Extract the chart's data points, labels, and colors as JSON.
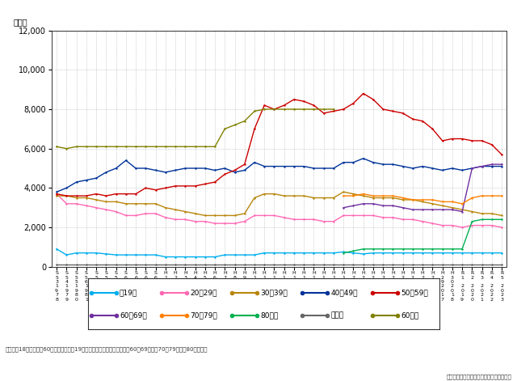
{
  "ylim": [
    0,
    12000
  ],
  "yticks": [
    0,
    2000,
    4000,
    6000,
    8000,
    10000,
    12000
  ],
  "series": {
    "~19歳": {
      "color": "#00aeef",
      "values": [
        900,
        600,
        700,
        700,
        700,
        650,
        600,
        600,
        600,
        600,
        600,
        500,
        500,
        500,
        500,
        500,
        500,
        600,
        600,
        600,
        600,
        700,
        700,
        700,
        700,
        700,
        700,
        700,
        700,
        750,
        700,
        650,
        700,
        700,
        700,
        700,
        700,
        700,
        700,
        700,
        700,
        700,
        700,
        700,
        700,
        700
      ]
    },
    "20~29歳": {
      "color": "#ff69b4",
      "values": [
        3700,
        3200,
        3200,
        3100,
        3000,
        2900,
        2800,
        2600,
        2600,
        2700,
        2700,
        2500,
        2400,
        2400,
        2300,
        2300,
        2200,
        2200,
        2200,
        2300,
        2600,
        2600,
        2600,
        2500,
        2400,
        2400,
        2400,
        2300,
        2300,
        2600,
        2600,
        2600,
        2600,
        2500,
        2500,
        2400,
        2400,
        2300,
        2200,
        2100,
        2100,
        2000,
        2100,
        2100,
        2100,
        2000
      ]
    },
    "30~39歳": {
      "color": "#b8860b",
      "values": [
        3600,
        3600,
        3500,
        3500,
        3400,
        3300,
        3300,
        3200,
        3200,
        3200,
        3200,
        3000,
        2900,
        2800,
        2700,
        2600,
        2600,
        2600,
        2600,
        2700,
        3500,
        3700,
        3700,
        3600,
        3600,
        3600,
        3500,
        3500,
        3500,
        3800,
        3700,
        3600,
        3500,
        3500,
        3500,
        3400,
        3400,
        3300,
        3200,
        3100,
        3000,
        2900,
        2800,
        2700,
        2700,
        2600
      ]
    },
    "40~49歳": {
      "color": "#003399",
      "values": [
        3800,
        4000,
        4300,
        4400,
        4500,
        4800,
        5000,
        5400,
        5000,
        5000,
        4900,
        4800,
        4900,
        5000,
        5000,
        5000,
        4900,
        5000,
        4800,
        4900,
        5300,
        5100,
        5100,
        5100,
        5100,
        5100,
        5000,
        5000,
        5000,
        5300,
        5300,
        5500,
        5300,
        5200,
        5200,
        5100,
        5000,
        5100,
        5000,
        4900,
        5000,
        4900,
        5000,
        5100,
        5100,
        5100
      ]
    },
    "50~59歳": {
      "color": "#cc0000",
      "values": [
        3700,
        3600,
        3600,
        3600,
        3700,
        3600,
        3700,
        3700,
        3700,
        4000,
        3900,
        4000,
        4100,
        4100,
        4100,
        4200,
        4300,
        4700,
        4900,
        5200,
        7000,
        8200,
        8000,
        8200,
        8500,
        8400,
        8200,
        7800,
        7900,
        8000,
        8300,
        8800,
        8500,
        8000,
        7900,
        7800,
        7500,
        7400,
        7000,
        6400,
        6500,
        6500,
        6400,
        6400,
        6200,
        5700
      ]
    },
    "60~69歳": {
      "color": "#7030a0",
      "values": [
        null,
        null,
        null,
        null,
        null,
        null,
        null,
        null,
        null,
        null,
        null,
        null,
        null,
        null,
        null,
        null,
        null,
        null,
        null,
        null,
        null,
        null,
        null,
        null,
        null,
        null,
        null,
        null,
        null,
        3000,
        3100,
        3200,
        3200,
        3100,
        3100,
        3000,
        2900,
        2900,
        2900,
        2900,
        2900,
        2800,
        5000,
        5100,
        5200,
        5200
      ]
    },
    "70~79歳": {
      "color": "#ff8000",
      "values": [
        null,
        null,
        null,
        null,
        null,
        null,
        null,
        null,
        null,
        null,
        null,
        null,
        null,
        null,
        null,
        null,
        null,
        null,
        null,
        null,
        null,
        null,
        null,
        null,
        null,
        null,
        null,
        null,
        null,
        3600,
        3600,
        3700,
        3600,
        3600,
        3600,
        3500,
        3400,
        3400,
        3400,
        3300,
        3300,
        3200,
        3500,
        3600,
        3600,
        3600
      ]
    },
    "80歳~": {
      "color": "#00b050",
      "values": [
        null,
        null,
        null,
        null,
        null,
        null,
        null,
        null,
        null,
        null,
        null,
        null,
        null,
        null,
        null,
        null,
        null,
        null,
        null,
        null,
        null,
        null,
        null,
        null,
        null,
        null,
        null,
        null,
        null,
        700,
        800,
        900,
        900,
        900,
        900,
        900,
        900,
        900,
        900,
        900,
        900,
        900,
        2300,
        2400,
        2400,
        2400
      ]
    },
    "不　計": {
      "color": "#666666",
      "values": [
        100,
        100,
        100,
        100,
        100,
        100,
        100,
        100,
        100,
        100,
        100,
        100,
        100,
        100,
        100,
        100,
        100,
        100,
        100,
        100,
        100,
        100,
        100,
        100,
        100,
        100,
        100,
        100,
        100,
        100,
        100,
        100,
        100,
        100,
        100,
        100,
        100,
        100,
        100,
        100,
        100,
        100,
        100,
        100,
        100,
        100
      ]
    },
    "60歳~": {
      "color": "#808000",
      "values": [
        6100,
        6000,
        6100,
        6100,
        6100,
        6100,
        6100,
        6100,
        6100,
        6100,
        6100,
        6100,
        6100,
        6100,
        6100,
        6100,
        6100,
        7000,
        7200,
        7400,
        7900,
        8000,
        8000,
        8000,
        8000,
        8000,
        8000,
        8000,
        8000,
        null,
        null,
        null,
        null,
        null,
        null,
        null,
        null,
        null,
        null,
        null,
        null,
        null,
        null,
        null,
        null,
        null
      ]
    }
  },
  "legend_row1": [
    {
      "label": "～19歳",
      "color": "#00aeef"
    },
    {
      "label": "20～29歳",
      "color": "#ff69b4"
    },
    {
      "label": "30～39歳",
      "color": "#b8860b"
    },
    {
      "label": "40～49歳",
      "color": "#003399"
    },
    {
      "label": "50～59歳",
      "color": "#cc0000"
    }
  ],
  "legend_row2": [
    {
      "label": "60～69歳",
      "color": "#7030a0"
    },
    {
      "label": "70～79歳",
      "color": "#ff8000"
    },
    {
      "label": "80歳～",
      "color": "#00b050"
    },
    {
      "label": "不　計",
      "color": "#666666"
    },
    {
      "label": "60歳～",
      "color": "#808000"
    }
  ],
  "note": "注）平成18年までは「60歳以上」だが、19年の自殺統計原票改正以降は「60～69歳」「70～79歳」「80歳以上」",
  "source": "資料：警察庁「自殺統計」より内閣府作成"
}
